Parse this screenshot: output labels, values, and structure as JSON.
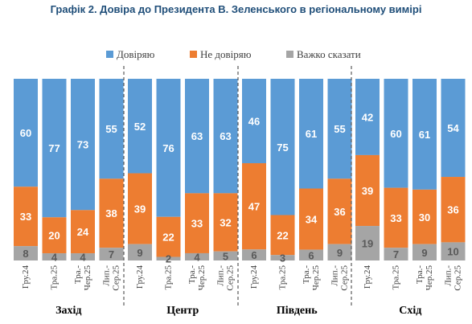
{
  "title": "Графік 2. Довіра до Президента В. Зеленського в регіональному вимірі",
  "colors": {
    "trust": "#5b9bd5",
    "distrust": "#ed7d31",
    "hard": "#a5a5a5"
  },
  "chart_data": {
    "type": "bar",
    "stacked": true,
    "title": "Графік 2. Довіра до Президента В. Зеленського в регіональному вимірі",
    "legend_position": "top",
    "ylim": [
      0,
      100
    ],
    "grid": false,
    "series": [
      {
        "name": "Довіряю",
        "key": "trust"
      },
      {
        "name": "Не довіряю",
        "key": "distrust"
      },
      {
        "name": "Важко сказати",
        "key": "hard"
      }
    ],
    "groups": [
      {
        "region": "Захід",
        "bars": [
          {
            "label": [
              "Гру.24"
            ],
            "trust": 60,
            "distrust": 33,
            "hard": 8
          },
          {
            "label": [
              "Тра.25"
            ],
            "trust": 77,
            "distrust": 20,
            "hard": 4
          },
          {
            "label": [
              "Тра.-",
              "Чер.25"
            ],
            "trust": 73,
            "distrust": 24,
            "hard": 4
          },
          {
            "label": [
              "Лип.-",
              "Сер.25"
            ],
            "trust": 55,
            "distrust": 38,
            "hard": 7
          }
        ]
      },
      {
        "region": "Центр",
        "bars": [
          {
            "label": [
              "Гру.24"
            ],
            "trust": 52,
            "distrust": 39,
            "hard": 9
          },
          {
            "label": [
              "Тра.25"
            ],
            "trust": 76,
            "distrust": 22,
            "hard": 2
          },
          {
            "label": [
              "Тра.-",
              "Чер.25"
            ],
            "trust": 63,
            "distrust": 33,
            "hard": 4
          },
          {
            "label": [
              "Лип.-",
              "Сер.25"
            ],
            "trust": 63,
            "distrust": 32,
            "hard": 5
          }
        ]
      },
      {
        "region": "Південь",
        "bars": [
          {
            "label": [
              "Гру.24"
            ],
            "trust": 46,
            "distrust": 47,
            "hard": 6
          },
          {
            "label": [
              "Тра.25"
            ],
            "trust": 75,
            "distrust": 22,
            "hard": 3
          },
          {
            "label": [
              "Тра.-",
              "Чер.25"
            ],
            "trust": 61,
            "distrust": 34,
            "hard": 6
          },
          {
            "label": [
              "Лип.-",
              "Сер.25"
            ],
            "trust": 55,
            "distrust": 36,
            "hard": 9
          }
        ]
      },
      {
        "region": "Схід",
        "bars": [
          {
            "label": [
              "Гру.24"
            ],
            "trust": 42,
            "distrust": 39,
            "hard": 19
          },
          {
            "label": [
              "Тра.25"
            ],
            "trust": 60,
            "distrust": 33,
            "hard": 7
          },
          {
            "label": [
              "Тра.-",
              "Чер.25"
            ],
            "trust": 61,
            "distrust": 30,
            "hard": 9
          },
          {
            "label": [
              "Лип.-",
              "Сер.25"
            ],
            "trust": 54,
            "distrust": 36,
            "hard": 10
          }
        ]
      }
    ]
  }
}
